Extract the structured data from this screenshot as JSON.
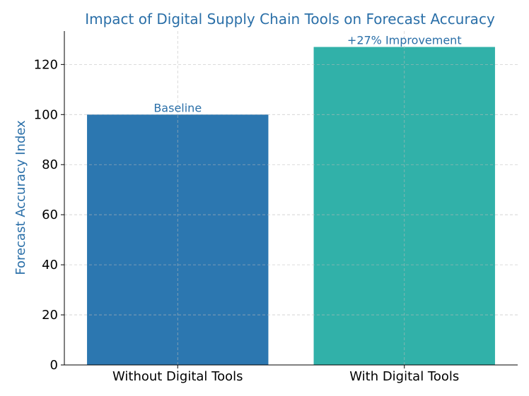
{
  "chart_data": {
    "type": "bar",
    "title": "Impact of Digital Supply Chain Tools on Forecast Accuracy",
    "xlabel": "",
    "ylabel": "Forecast Accuracy Index",
    "categories": [
      "Without Digital Tools",
      "With Digital Tools"
    ],
    "values": [
      100,
      127
    ],
    "bar_labels": [
      "Baseline",
      "+27% Improvement"
    ],
    "bar_colors": [
      "#2c77b0",
      "#31b1a9"
    ],
    "label_color": "#2a6fa8",
    "ylim": [
      0,
      133.35
    ],
    "yticks": [
      0,
      20,
      40,
      60,
      80,
      100,
      120
    ],
    "grid": true
  }
}
